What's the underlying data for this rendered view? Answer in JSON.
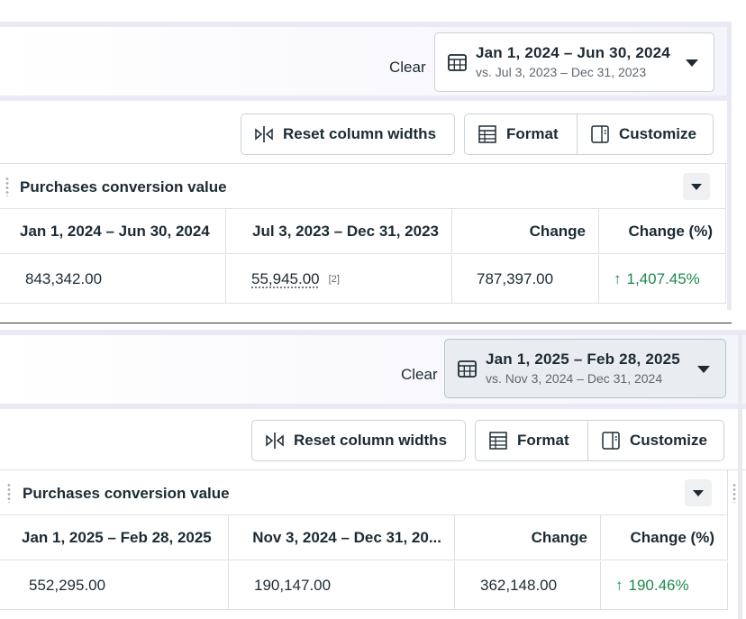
{
  "panels": [
    {
      "clear_label": "Clear",
      "date_range": "Jan 1, 2024 – Jun 30, 2024",
      "compare_range": "vs. Jul 3, 2023 – Dec 31, 2023",
      "toolbar": {
        "reset_label": "Reset column widths",
        "format_label": "Format",
        "customize_label": "Customize"
      },
      "group_title": "Purchases conversion value",
      "columns": [
        "Jan 1, 2024 – Jun 30, 2024",
        "Jul 3, 2023 – Dec 31, 2023",
        "Change",
        "Change (%)"
      ],
      "row": {
        "current": "843,342.00",
        "previous": "55,945.00",
        "footnote": "[2]",
        "change": "787,397.00",
        "change_pct": "1,407.45%"
      }
    },
    {
      "clear_label": "Clear",
      "date_range": "Jan 1, 2025 – Feb 28, 2025",
      "compare_range": "vs. Nov 3, 2024 – Dec 31, 2024",
      "toolbar": {
        "reset_label": "Reset column widths",
        "format_label": "Format",
        "customize_label": "Customize"
      },
      "group_title": "Purchases conversion value",
      "columns": [
        "Jan 1, 2025 – Feb 28, 2025",
        "Nov 3, 2024 – Dec 31, 20...",
        "Change",
        "Change (%)"
      ],
      "row": {
        "current": "552,295.00",
        "previous": "190,147.00",
        "change": "362,148.00",
        "change_pct": "190.46%"
      }
    }
  ],
  "colors": {
    "positive": "#1e8a4c",
    "border": "#dde1e5",
    "text": "#1c2b33"
  },
  "icons": [
    "calendar-icon",
    "chevron-down-icon",
    "reset-columns-icon",
    "format-icon",
    "customize-icon",
    "drag-handle-icon",
    "up-arrow-icon"
  ]
}
